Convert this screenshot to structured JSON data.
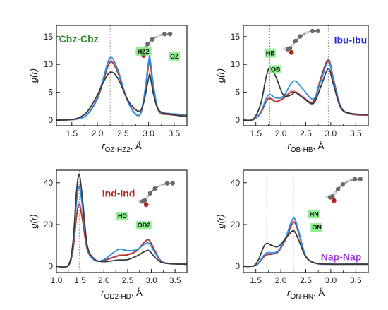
{
  "colors": {
    "series": [
      "#3a3a3a",
      "#2f8fe8",
      "#a73a2a",
      "#f3a8c8"
    ],
    "sys_labels": [
      "#2e8b2e",
      "#2b2bd6",
      "#b22a22",
      "#a23ad8"
    ],
    "atom_highlight": "#6fea6f"
  },
  "chart_data": [
    {
      "type": "line",
      "system_label": "Cbz-Cbz",
      "ylabel": "g(r)",
      "xlabel_main": "r",
      "xlabel_sub": "OZ-HZ2",
      "xlabel_unit": ", Å",
      "xlim": [
        1.2,
        3.75
      ],
      "ylim": [
        -1,
        17
      ],
      "xticks": [
        1.5,
        2.0,
        2.5,
        3.0,
        3.5
      ],
      "xtick_labels": [
        "1.5",
        "2.0",
        "2.5",
        "3.0",
        "3.5"
      ],
      "yticks": [
        0,
        5,
        10,
        15
      ],
      "ytick_labels": [
        "0",
        "5",
        "10",
        "15"
      ],
      "vlines": [
        2.25,
        3.03
      ],
      "atom_labels": [
        "HZ2",
        "OZ"
      ],
      "series": [
        {
          "x": [
            1.2,
            1.4,
            1.6,
            1.8,
            2.0,
            2.1,
            2.25,
            2.4,
            2.6,
            2.8,
            2.9,
            3.0,
            3.03,
            3.1,
            3.2,
            3.4,
            3.75
          ],
          "y": [
            0,
            0.05,
            0.3,
            1.5,
            4.5,
            6.5,
            8.6,
            7.5,
            3.5,
            1.6,
            3.0,
            7.5,
            8.0,
            4.5,
            1.8,
            1.1,
            0.6
          ]
        },
        {
          "x": [
            1.2,
            1.4,
            1.6,
            1.8,
            2.0,
            2.1,
            2.25,
            2.4,
            2.6,
            2.8,
            2.9,
            3.0,
            3.03,
            3.1,
            3.2,
            3.4,
            3.75
          ],
          "y": [
            0,
            0.05,
            0.2,
            1.0,
            4.0,
            7.0,
            11.2,
            9.0,
            3.2,
            0.8,
            3.5,
            10.5,
            11.0,
            6.0,
            1.8,
            1.2,
            1.0
          ]
        },
        {
          "x": [
            1.2,
            1.4,
            1.6,
            1.8,
            2.0,
            2.1,
            2.25,
            2.4,
            2.6,
            2.8,
            2.9,
            3.0,
            3.03,
            3.1,
            3.2,
            3.4,
            3.75
          ],
          "y": [
            0,
            0.05,
            0.2,
            1.0,
            3.8,
            6.5,
            10.4,
            8.5,
            3.2,
            0.8,
            3.2,
            9.8,
            10.3,
            5.5,
            1.6,
            1.0,
            0.8
          ]
        },
        {
          "x": [
            1.2,
            1.4,
            1.6,
            1.8,
            2.0,
            2.1,
            2.25,
            2.4,
            2.6,
            2.8,
            2.9,
            3.0,
            3.03,
            3.1,
            3.2,
            3.4,
            3.75
          ],
          "y": [
            0,
            0.05,
            0.2,
            1.0,
            3.9,
            6.7,
            10.6,
            8.7,
            3.3,
            0.8,
            3.3,
            10.0,
            10.5,
            5.7,
            1.7,
            1.1,
            0.9
          ]
        }
      ]
    },
    {
      "type": "line",
      "system_label": "Ibu-Ibu",
      "ylabel": "g(r)",
      "xlabel_main": "r",
      "xlabel_sub": "OB-HB",
      "xlabel_unit": ", Å",
      "xlim": [
        1.25,
        3.75
      ],
      "ylim": [
        -1,
        17
      ],
      "xticks": [
        1.5,
        2.0,
        2.5,
        3.0,
        3.5
      ],
      "xtick_labels": [
        "1.5",
        "2.0",
        "2.5",
        "3.0",
        "3.5"
      ],
      "yticks": [
        0,
        5,
        10,
        15
      ],
      "ytick_labels": [
        "0",
        "5",
        "10",
        "15"
      ],
      "vlines": [
        1.78,
        2.95
      ],
      "atom_labels": [
        "HB",
        "OB"
      ],
      "series": [
        {
          "x": [
            1.25,
            1.45,
            1.6,
            1.7,
            1.78,
            1.9,
            2.05,
            2.2,
            2.3,
            2.45,
            2.65,
            2.8,
            2.95,
            3.05,
            3.2,
            3.4,
            3.75
          ],
          "y": [
            0,
            0.2,
            3.0,
            7.5,
            9.4,
            7.8,
            4.5,
            4.5,
            5.0,
            4.0,
            3.0,
            6.0,
            9.2,
            6.5,
            2.2,
            1.2,
            1.0
          ]
        },
        {
          "x": [
            1.25,
            1.45,
            1.6,
            1.7,
            1.78,
            1.9,
            2.05,
            2.2,
            2.3,
            2.45,
            2.65,
            2.8,
            2.95,
            3.05,
            3.2,
            3.4,
            3.75
          ],
          "y": [
            0,
            0.1,
            1.5,
            3.8,
            4.6,
            4.0,
            4.3,
            6.5,
            7.0,
            5.5,
            3.8,
            7.0,
            10.5,
            7.2,
            2.4,
            1.2,
            1.0
          ]
        },
        {
          "x": [
            1.25,
            1.45,
            1.6,
            1.7,
            1.78,
            1.9,
            2.05,
            2.2,
            2.3,
            2.45,
            2.65,
            2.8,
            2.95,
            3.05,
            3.2,
            3.4,
            3.75
          ],
          "y": [
            0,
            0.1,
            1.3,
            3.2,
            3.9,
            3.3,
            3.9,
            5.0,
            4.9,
            4.0,
            3.3,
            7.5,
            10.8,
            7.5,
            2.4,
            1.1,
            0.9
          ]
        },
        {
          "x": [
            1.25,
            1.45,
            1.6,
            1.7,
            1.78,
            1.9,
            2.05,
            2.2,
            2.3,
            2.45,
            2.65,
            2.8,
            2.95,
            3.05,
            3.2,
            3.4,
            3.75
          ],
          "y": [
            0,
            0.1,
            1.4,
            3.4,
            4.1,
            3.5,
            4.0,
            5.2,
            5.1,
            4.2,
            3.4,
            7.6,
            10.9,
            7.6,
            2.5,
            1.1,
            0.9
          ]
        }
      ]
    },
    {
      "type": "line",
      "system_label": "Ind-Ind",
      "ylabel": "g(r)",
      "xlabel_main": "r",
      "xlabel_sub": "OD2-HD",
      "xlabel_unit": ", Å",
      "xlim": [
        1.0,
        3.75
      ],
      "ylim": [
        -3,
        46
      ],
      "xticks": [
        1.0,
        1.5,
        2.0,
        2.5,
        3.0,
        3.5
      ],
      "xtick_labels": [
        "1.0",
        "1.5",
        "2.0",
        "2.5",
        "3.0",
        "3.5"
      ],
      "yticks": [
        0,
        20,
        40
      ],
      "ytick_labels": [
        "0",
        "20",
        "40"
      ],
      "vlines": [
        1.48
      ],
      "atom_labels": [
        "HD",
        "OD2"
      ],
      "series": [
        {
          "x": [
            1.0,
            1.25,
            1.35,
            1.42,
            1.48,
            1.55,
            1.65,
            1.8,
            2.0,
            2.3,
            2.5,
            2.7,
            2.85,
            2.95,
            3.05,
            3.2,
            3.4,
            3.75
          ],
          "y": [
            0,
            0.5,
            12.0,
            35.0,
            44.0,
            32.0,
            10.0,
            3.5,
            2.2,
            3.0,
            3.2,
            5.0,
            7.0,
            7.5,
            5.0,
            2.0,
            1.2,
            1.0
          ]
        },
        {
          "x": [
            1.0,
            1.25,
            1.35,
            1.42,
            1.48,
            1.55,
            1.65,
            1.8,
            2.0,
            2.3,
            2.5,
            2.7,
            2.85,
            2.95,
            3.05,
            3.2,
            3.4,
            3.75
          ],
          "y": [
            0,
            0.5,
            10.0,
            30.0,
            38.0,
            28.0,
            9.0,
            3.0,
            3.2,
            8.0,
            7.5,
            8.0,
            10.5,
            11.0,
            7.5,
            2.5,
            1.3,
            1.0
          ]
        },
        {
          "x": [
            1.0,
            1.25,
            1.35,
            1.42,
            1.48,
            1.55,
            1.65,
            1.8,
            2.0,
            2.3,
            2.5,
            2.7,
            2.85,
            2.95,
            3.05,
            3.2,
            3.4,
            3.75
          ],
          "y": [
            0,
            0.4,
            8.0,
            23.0,
            29.5,
            22.0,
            8.0,
            3.0,
            2.8,
            5.0,
            5.5,
            7.5,
            11.5,
            12.5,
            8.5,
            2.7,
            1.3,
            1.0
          ]
        },
        {
          "x": [
            1.0,
            1.25,
            1.35,
            1.42,
            1.48,
            1.55,
            1.65,
            1.8,
            2.0,
            2.3,
            2.5,
            2.7,
            2.85,
            2.95,
            3.05,
            3.2,
            3.4,
            3.75
          ],
          "y": [
            0,
            0.4,
            8.5,
            24.0,
            30.5,
            23.0,
            8.2,
            3.0,
            2.9,
            5.3,
            5.8,
            7.7,
            11.6,
            12.6,
            8.6,
            2.7,
            1.3,
            1.0
          ]
        }
      ]
    },
    {
      "type": "line",
      "system_label": "Nap-Nap",
      "ylabel": "g(r)",
      "xlabel_main": "r",
      "xlabel_sub": "ON-HN",
      "xlabel_unit": ", Å",
      "xlim": [
        1.25,
        3.75
      ],
      "ylim": [
        -3,
        46
      ],
      "xticks": [
        1.5,
        2.0,
        2.5,
        3.0,
        3.5
      ],
      "xtick_labels": [
        "1.5",
        "2.0",
        "2.5",
        "3.0",
        "3.5"
      ],
      "yticks": [
        0,
        20,
        40
      ],
      "ytick_labels": [
        "0",
        "20",
        "40"
      ],
      "vlines": [
        1.72,
        2.25
      ],
      "atom_labels": [
        "HN",
        "ON"
      ],
      "series": [
        {
          "x": [
            1.25,
            1.45,
            1.55,
            1.65,
            1.72,
            1.82,
            1.95,
            2.1,
            2.25,
            2.35,
            2.5,
            2.7,
            3.0,
            3.4,
            3.75
          ],
          "y": [
            0,
            0.2,
            3.0,
            9.0,
            11.0,
            10.0,
            9.5,
            13.5,
            17.0,
            13.0,
            4.5,
            1.5,
            1.0,
            1.0,
            1.0
          ]
        },
        {
          "x": [
            1.25,
            1.45,
            1.55,
            1.65,
            1.72,
            1.82,
            1.95,
            2.1,
            2.25,
            2.35,
            2.5,
            2.7,
            3.0,
            3.4,
            3.75
          ],
          "y": [
            0,
            0.1,
            1.5,
            5.0,
            6.5,
            6.5,
            7.5,
            14.0,
            23.0,
            17.5,
            5.0,
            1.4,
            1.0,
            1.0,
            1.0
          ]
        },
        {
          "x": [
            1.25,
            1.45,
            1.55,
            1.65,
            1.72,
            1.82,
            1.95,
            2.1,
            2.25,
            2.35,
            2.5,
            2.7,
            3.0,
            3.4,
            3.75
          ],
          "y": [
            0,
            0.1,
            1.3,
            4.2,
            5.5,
            5.8,
            7.0,
            13.0,
            21.0,
            16.5,
            4.8,
            1.4,
            1.0,
            1.0,
            1.0
          ]
        },
        {
          "x": [
            1.25,
            1.45,
            1.55,
            1.65,
            1.72,
            1.82,
            1.95,
            2.1,
            2.25,
            2.35,
            2.5,
            2.7,
            3.0,
            3.4,
            3.75
          ],
          "y": [
            0,
            0.1,
            1.4,
            4.4,
            5.7,
            6.0,
            7.2,
            13.3,
            21.5,
            16.8,
            4.9,
            1.4,
            1.0,
            1.0,
            1.0
          ]
        }
      ]
    }
  ]
}
